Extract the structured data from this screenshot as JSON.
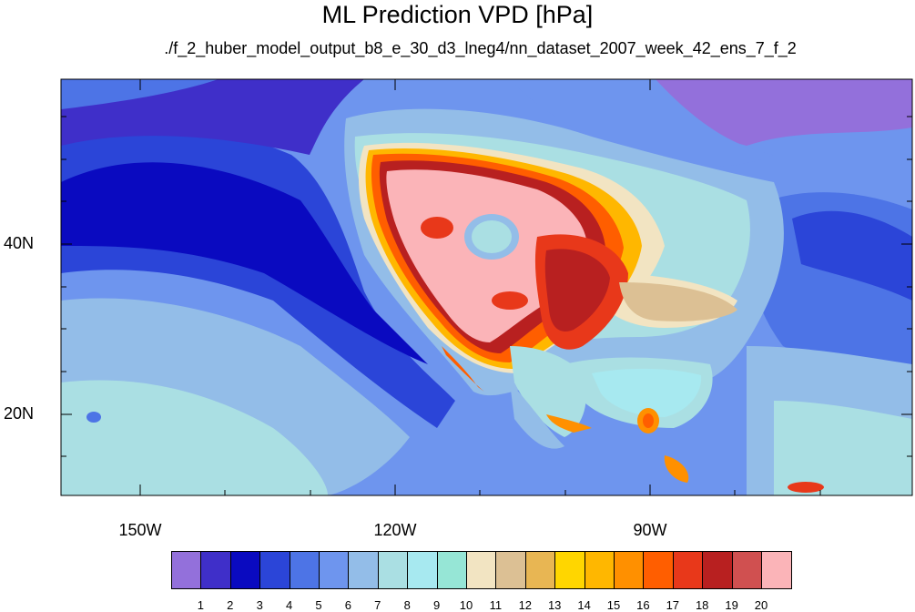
{
  "title": "ML Prediction VPD [hPa]",
  "subtitle": "./f_2_huber_model_output_b8_e_30_d3_lneg4/nn_dataset_2007_week_42_ens_7_f_2",
  "lat_labels": [
    "40N",
    "20N"
  ],
  "lon_labels": [
    "150W",
    "120W",
    "90W"
  ],
  "colorbar": {
    "labels": [
      "1",
      "2",
      "3",
      "4",
      "5",
      "6",
      "7",
      "8",
      "9",
      "10",
      "11",
      "12",
      "13",
      "14",
      "15",
      "16",
      "17",
      "18",
      "19",
      "20"
    ],
    "colors": [
      "#9370db",
      "#3f2fc9",
      "#0a0ac0",
      "#2b45d8",
      "#4d74e6",
      "#6e95ee",
      "#93bde8",
      "#aadfe3",
      "#a7e9f0",
      "#96e6d6",
      "#f2e4c2",
      "#dcc094",
      "#e8b653",
      "#ffd600",
      "#ffb700",
      "#ff9000",
      "#ff5e00",
      "#e8381a",
      "#b82020",
      "#d05050",
      "#fbb4b8"
    ]
  }
}
